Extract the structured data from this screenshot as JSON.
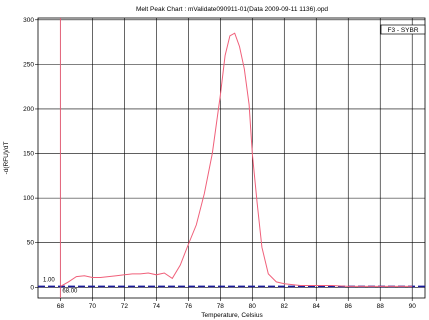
{
  "chart_data": {
    "type": "line",
    "title": "Melt Peak Chart : mValidate090911-01(Data 2009-09-11 1136).opd",
    "xlabel": "Temperature, Celsius",
    "ylabel": "-d(RFU)/dT",
    "xlim": [
      66.6,
      90.8
    ],
    "ylim": [
      -12,
      302
    ],
    "xticks": [
      68,
      70,
      72,
      74,
      76,
      78,
      80,
      82,
      84,
      86,
      88,
      90
    ],
    "yticks": [
      0,
      50,
      100,
      150,
      200,
      250,
      300
    ],
    "grid": true,
    "legend": {
      "position": "top-right",
      "label": "F3 - SYBR"
    },
    "series": [
      {
        "name": "F3 - SYBR",
        "color": "#f0607a",
        "x": [
          68.0,
          68.5,
          69.0,
          69.5,
          70.0,
          70.5,
          71.0,
          71.5,
          72.0,
          72.5,
          73.0,
          73.5,
          74.0,
          74.5,
          75.0,
          75.5,
          76.0,
          76.5,
          77.0,
          77.5,
          78.0,
          78.3,
          78.6,
          78.9,
          79.2,
          79.5,
          79.8,
          80.0,
          80.3,
          80.6,
          81.0,
          81.5,
          82.0,
          82.5,
          83.0,
          84.0,
          85.0,
          86.0,
          87.0,
          88.0,
          89.0,
          90.0
        ],
        "y": [
          1,
          6,
          12,
          13,
          11,
          11,
          12,
          13,
          14,
          15,
          15,
          16,
          14,
          16,
          10,
          25,
          48,
          70,
          105,
          150,
          215,
          260,
          282,
          285,
          270,
          245,
          205,
          150,
          95,
          45,
          15,
          6,
          4,
          3,
          2,
          2,
          2,
          1,
          1,
          1,
          1,
          1
        ]
      }
    ],
    "threshold": {
      "value": 1.0,
      "label": "1.00",
      "color": "#1a1a99"
    },
    "marker": {
      "value": 68.0,
      "label": "68.00",
      "color": "#f0607a"
    }
  }
}
